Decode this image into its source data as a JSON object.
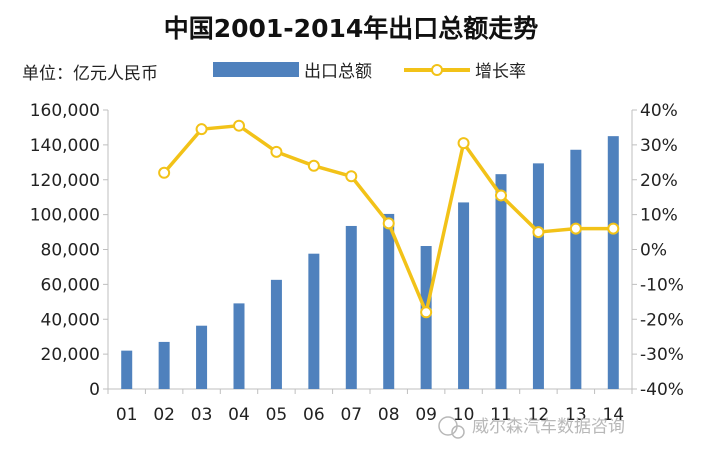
{
  "chart_data": {
    "type": "bar",
    "title": "中国2001-2014年出口总额走势",
    "unit_label": "单位：亿元人民币",
    "categories": [
      "01",
      "02",
      "03",
      "04",
      "05",
      "06",
      "07",
      "08",
      "09",
      "10",
      "11",
      "12",
      "13",
      "14"
    ],
    "series": [
      {
        "name": "出口总额",
        "type": "bar",
        "axis": "left",
        "color": "#4f81bd",
        "values": [
          22000,
          27000,
          36300,
          49100,
          62600,
          77600,
          93500,
          100400,
          82000,
          107000,
          123200,
          129400,
          137200,
          145000
        ]
      },
      {
        "name": "增长率",
        "type": "line",
        "axis": "right",
        "color": "#f2c218",
        "values": [
          null,
          22,
          34.5,
          35.5,
          28,
          24,
          21,
          7.5,
          -18,
          30.5,
          15.5,
          5,
          6,
          6
        ]
      }
    ],
    "y_left": {
      "ylim": [
        0,
        160000
      ],
      "ticks": [
        0,
        20000,
        40000,
        60000,
        80000,
        100000,
        120000,
        140000,
        160000
      ],
      "tick_labels": [
        "0",
        "20,000",
        "40,000",
        "60,000",
        "80,000",
        "100,000",
        "120,000",
        "140,000",
        "160,000"
      ]
    },
    "y_right": {
      "ylim": [
        -40,
        40
      ],
      "ticks": [
        -40,
        -30,
        -20,
        -10,
        0,
        10,
        20,
        30,
        40
      ],
      "tick_labels": [
        "-40%",
        "-30%",
        "-20%",
        "-10%",
        "0%",
        "10%",
        "20%",
        "30%",
        "40%"
      ]
    },
    "legend": [
      "出口总额",
      "增长率"
    ],
    "legend_position": "top",
    "grid": false
  },
  "watermark": "威尔森汽车数据咨询",
  "colors": {
    "background": "#ffffff",
    "axis": "#bfbfbf",
    "wm": "#b8b8b8"
  }
}
